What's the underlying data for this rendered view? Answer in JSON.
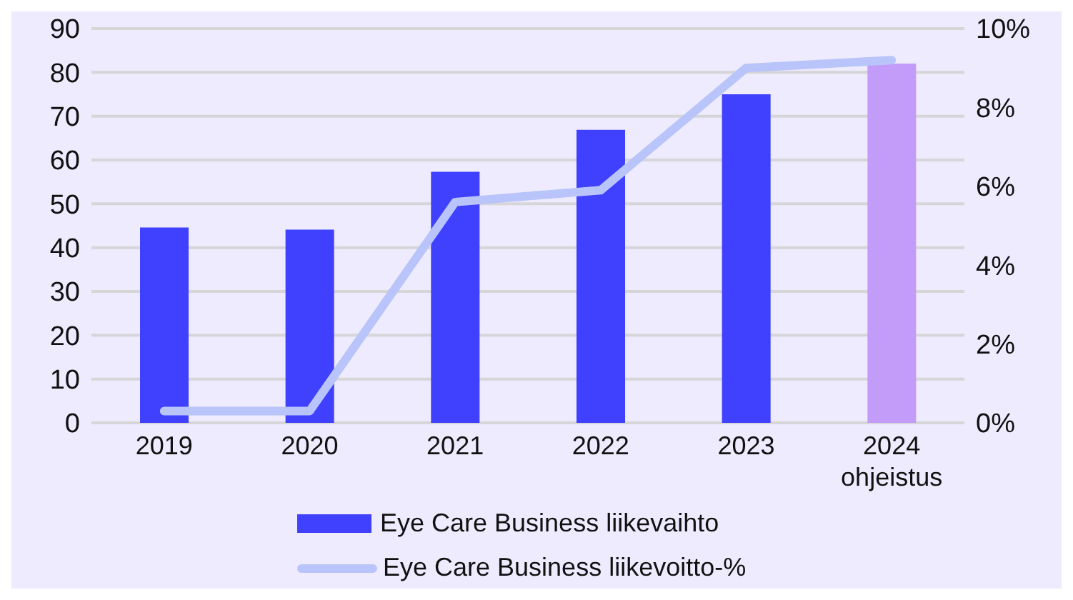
{
  "chart_data": {
    "type": "bar",
    "categories": [
      "2019",
      "2020",
      "2021",
      "2022",
      "2023",
      "2024\nohjeistus"
    ],
    "series": [
      {
        "name": "Eye Care Business liikevaihto",
        "color": "#4040ff",
        "colors": [
          "#4040ff",
          "#4040ff",
          "#4040ff",
          "#4040ff",
          "#4040ff",
          "#c39bf9"
        ],
        "values": [
          44.6,
          44.1,
          57.3,
          66.9,
          75.0,
          82.0
        ]
      },
      {
        "name": "Eye Care Business liikevoitto-%",
        "type": "line",
        "axis": "y2",
        "color": "#b8c4fa",
        "marker": "none",
        "values": [
          0.3,
          0.3,
          5.6,
          5.9,
          9.0,
          9.2
        ]
      }
    ],
    "ylim": [
      0,
      90
    ],
    "yticks": [
      0,
      10,
      20,
      30,
      40,
      50,
      60,
      70,
      80,
      90
    ],
    "y2lim": [
      0,
      10
    ],
    "y2ticks": [
      {
        "value": 0,
        "label": "0%"
      },
      {
        "value": 2,
        "label": "2%"
      },
      {
        "value": 4,
        "label": "4%"
      },
      {
        "value": 6,
        "label": "6%"
      },
      {
        "value": 8,
        "label": "8%"
      },
      {
        "value": 10,
        "label": "10%"
      }
    ],
    "grid": "y",
    "legend": "bottom"
  }
}
